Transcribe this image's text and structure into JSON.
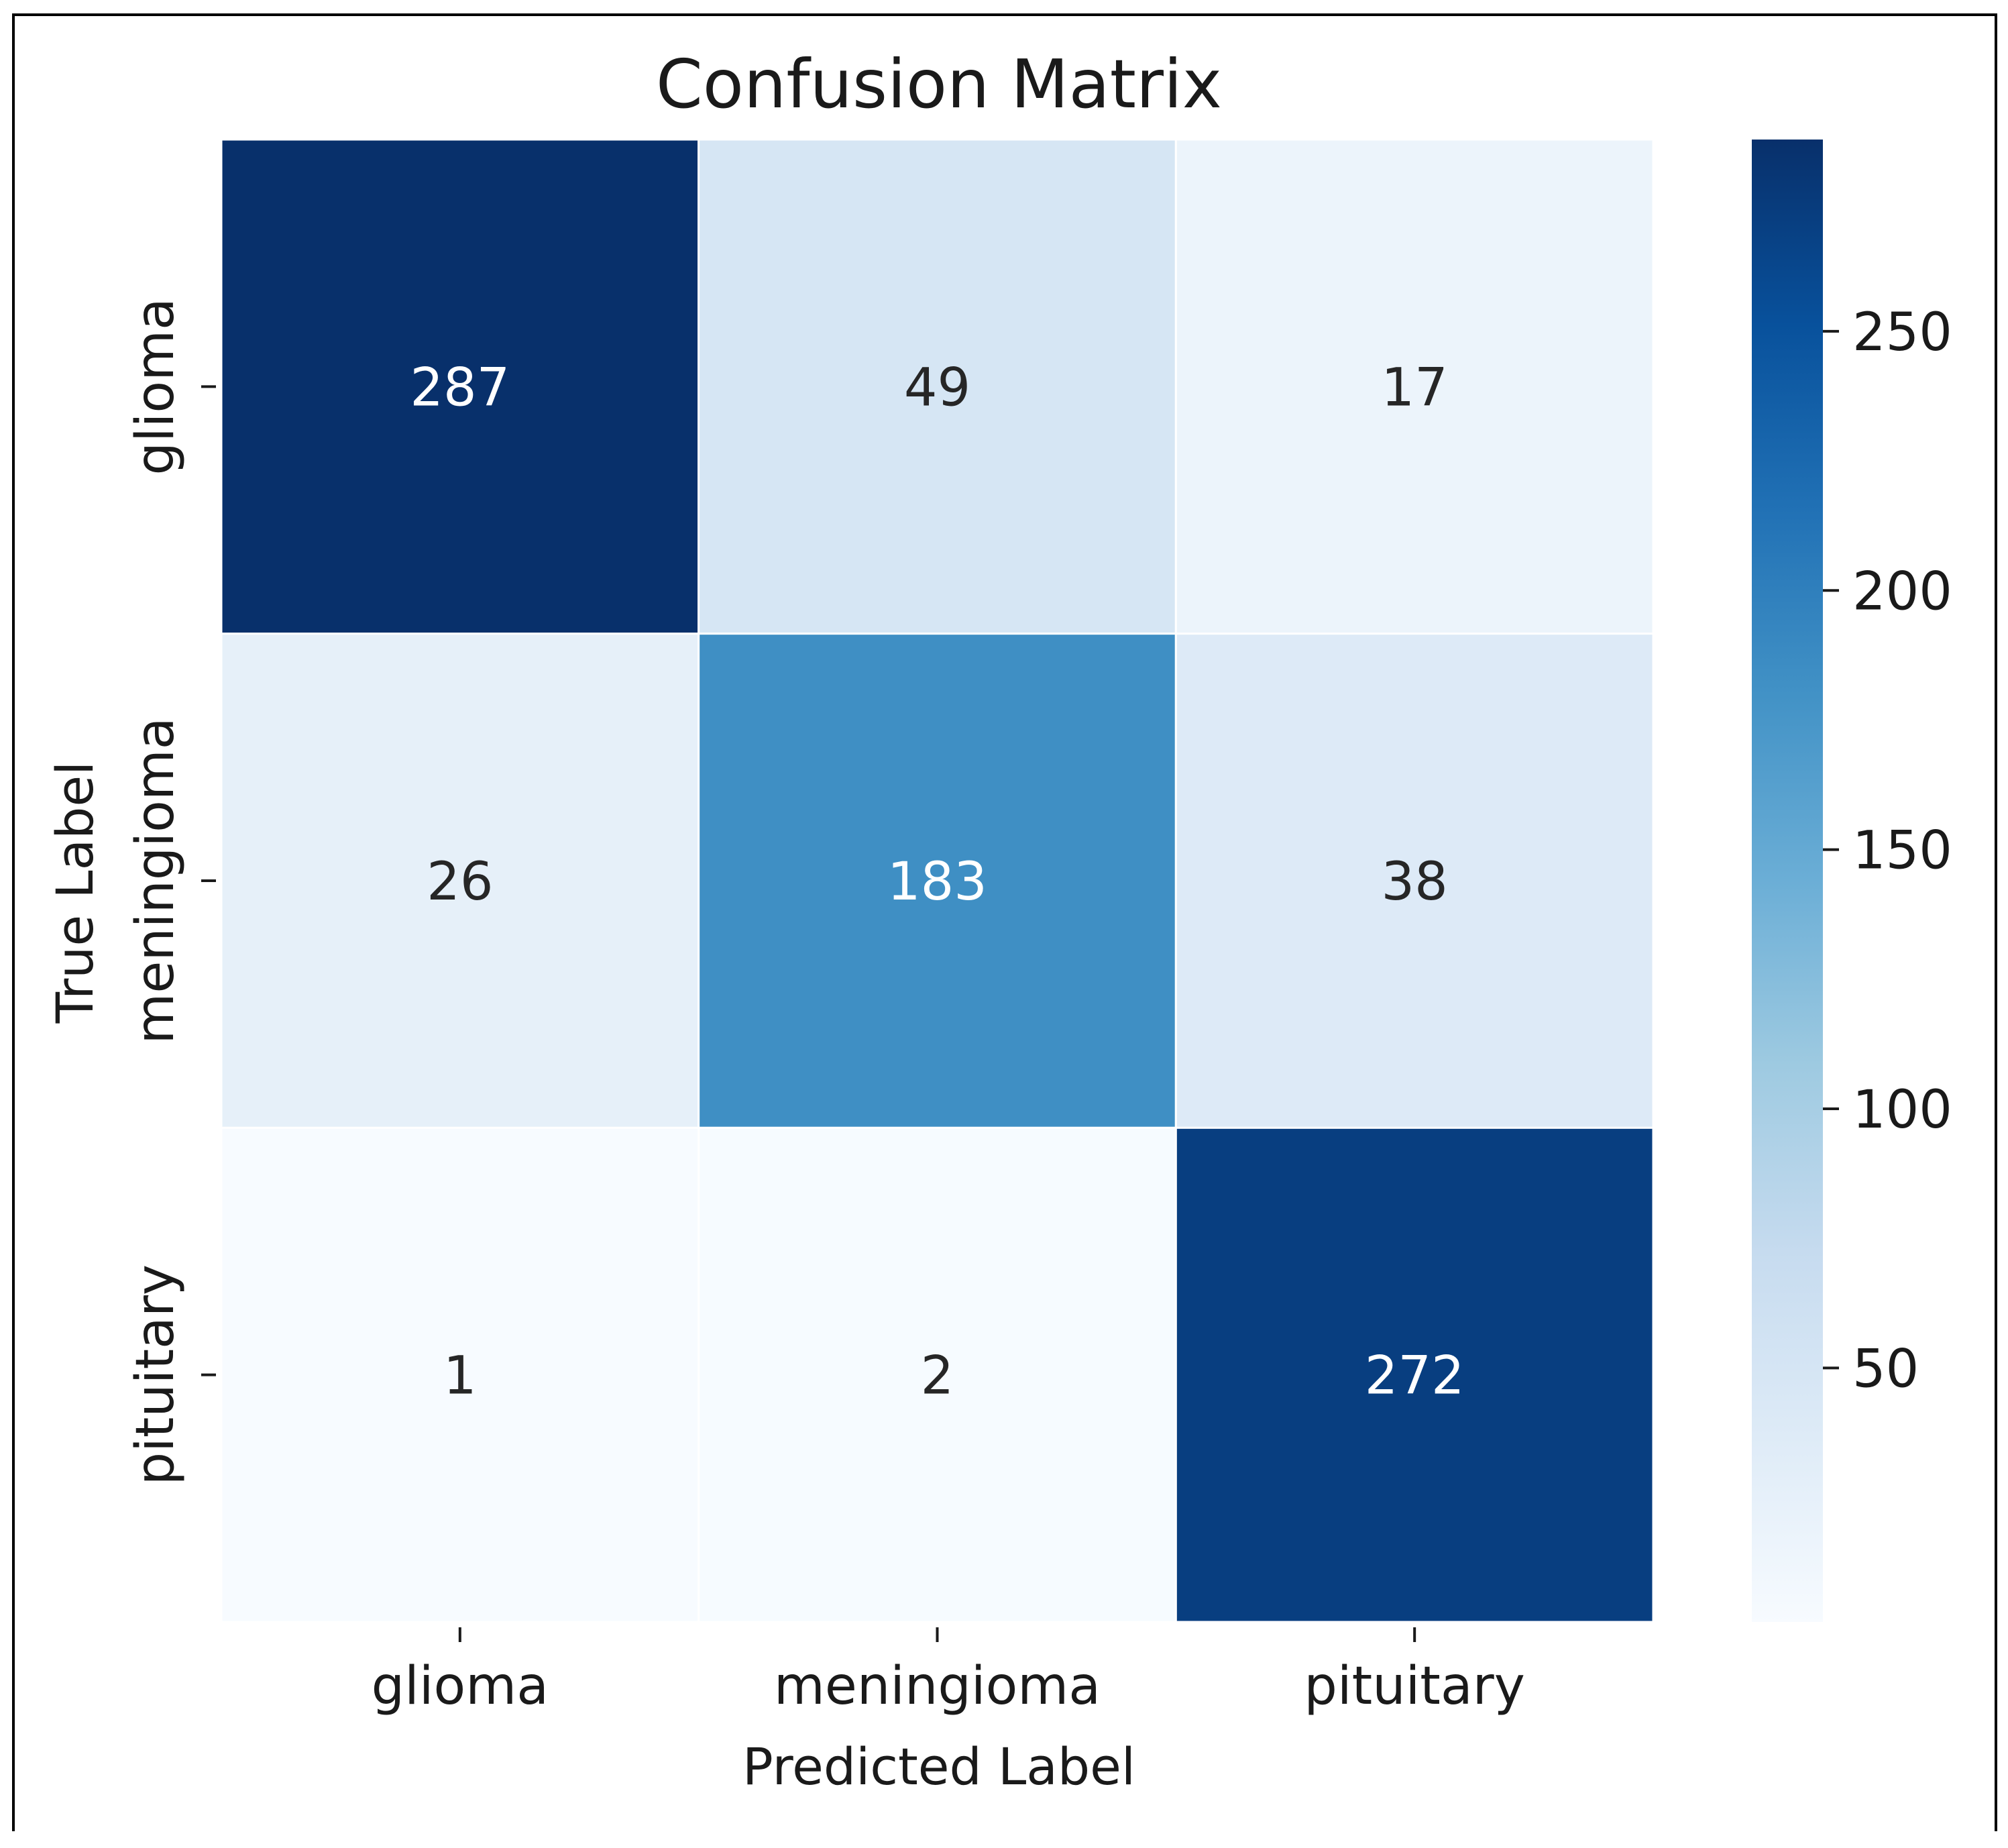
{
  "chart_data": {
    "type": "heatmap",
    "title": "Confusion Matrix",
    "xlabel": "Predicted Label",
    "ylabel": "True Label",
    "x_categories": [
      "glioma",
      "meningioma",
      "pituitary"
    ],
    "y_categories": [
      "glioma",
      "meningioma",
      "pituitary"
    ],
    "values": [
      [
        287,
        49,
        17
      ],
      [
        26,
        183,
        38
      ],
      [
        1,
        2,
        272
      ]
    ],
    "colormap": "Blues",
    "colorbar": {
      "range": [
        1,
        287
      ],
      "ticks": [
        50,
        100,
        150,
        200,
        250
      ]
    },
    "colors": {
      "lowest": "#f7fbff",
      "highest": "#08306b"
    }
  }
}
